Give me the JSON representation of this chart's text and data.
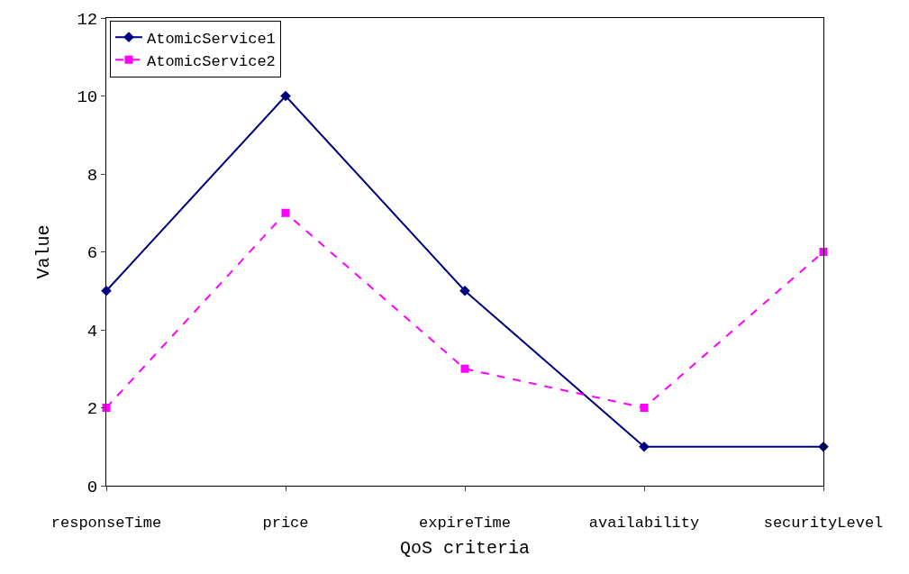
{
  "chart_data": {
    "type": "line",
    "xlabel": "QoS criteria",
    "ylabel": "Value",
    "categories": [
      "responseTime",
      "price",
      "expireTime",
      "availability",
      "securityLevel"
    ],
    "series": [
      {
        "name": "AtomicService1",
        "color": "#000080",
        "values": [
          5,
          10,
          5,
          1,
          1
        ],
        "marker": "diamond",
        "line_style": "solid"
      },
      {
        "name": "AtomicService2",
        "color": "#ff00ff",
        "values": [
          2,
          7,
          3,
          2,
          6
        ],
        "marker": "square",
        "line_style": "dashed"
      }
    ],
    "ylim": [
      0,
      12
    ],
    "yticks": [
      0,
      2,
      4,
      6,
      8,
      10,
      12
    ],
    "legend": "top left"
  }
}
